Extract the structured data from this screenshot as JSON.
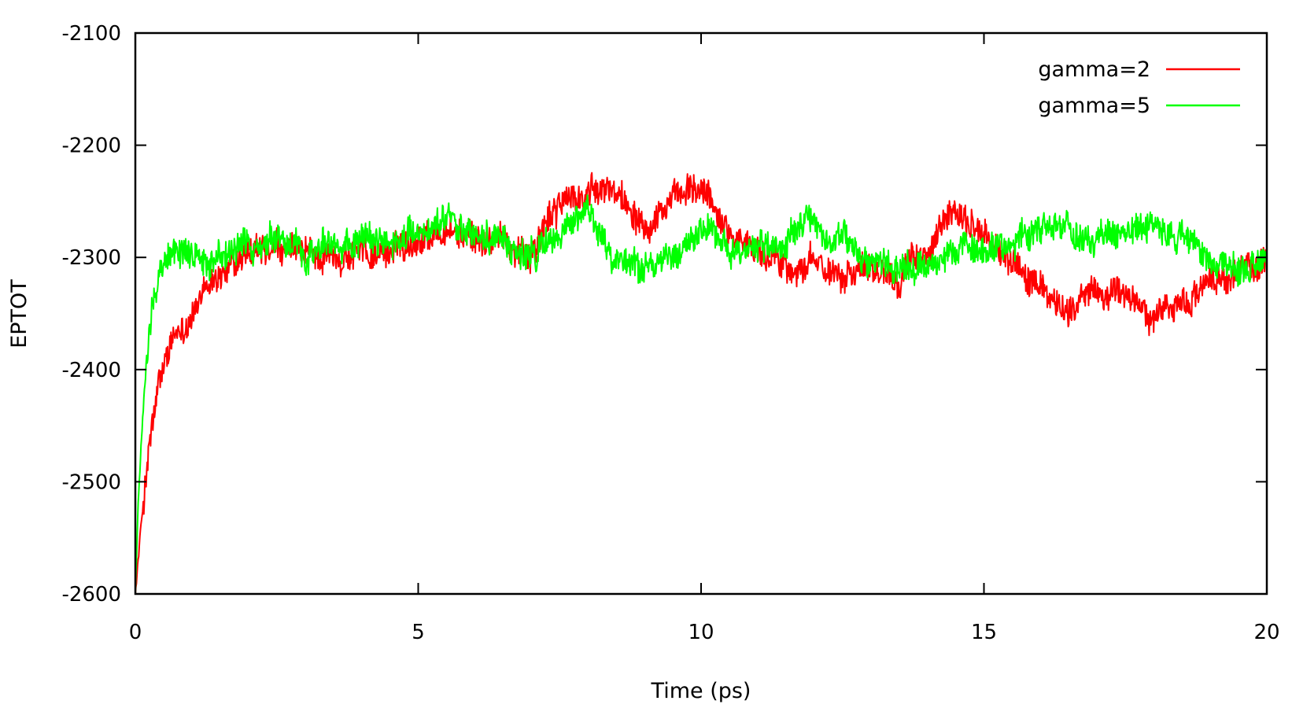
{
  "chart_data": {
    "type": "line",
    "title": "",
    "xlabel": "Time (ps)",
    "ylabel": "EPTOT",
    "xlim": [
      0,
      20
    ],
    "ylim": [
      -2600,
      -2100
    ],
    "xticks": [
      0,
      5,
      10,
      15,
      20
    ],
    "yticks": [
      -2600,
      -2500,
      -2400,
      -2300,
      -2200,
      -2100
    ],
    "xtick_labels": [
      "0",
      "5",
      "10",
      "15",
      "20"
    ],
    "ytick_labels": [
      "-2600",
      "-2500",
      "-2400",
      "-2300",
      "-2200",
      "-2100"
    ],
    "grid": false,
    "legend_position": "top-right",
    "series": [
      {
        "name": "gamma=2",
        "color": "#ff0000",
        "noise": 11,
        "x": [
          0,
          0.1,
          0.2,
          0.3,
          0.4,
          0.5,
          0.6,
          0.8,
          1.0,
          1.2,
          1.5,
          2.0,
          2.5,
          3.0,
          3.5,
          4.0,
          4.5,
          5.0,
          5.5,
          6.0,
          6.5,
          7.0,
          7.5,
          8.0,
          8.5,
          9.0,
          9.5,
          10.0,
          10.5,
          11.0,
          11.5,
          12.0,
          12.5,
          13.0,
          13.5,
          14.0,
          14.5,
          15.0,
          15.5,
          16.0,
          16.5,
          17.0,
          17.5,
          18.0,
          18.5,
          19.0,
          19.5,
          20.0
        ],
        "y": [
          -2600,
          -2540,
          -2490,
          -2450,
          -2420,
          -2400,
          -2385,
          -2365,
          -2350,
          -2335,
          -2315,
          -2300,
          -2295,
          -2298,
          -2300,
          -2295,
          -2295,
          -2280,
          -2275,
          -2285,
          -2285,
          -2295,
          -2250,
          -2245,
          -2240,
          -2265,
          -2250,
          -2240,
          -2275,
          -2295,
          -2305,
          -2310,
          -2310,
          -2305,
          -2315,
          -2295,
          -2260,
          -2280,
          -2305,
          -2330,
          -2345,
          -2330,
          -2335,
          -2350,
          -2340,
          -2325,
          -2310,
          -2305
        ]
      },
      {
        "name": "gamma=5",
        "color": "#00ff00",
        "noise": 11,
        "x": [
          0,
          0.05,
          0.1,
          0.15,
          0.2,
          0.25,
          0.3,
          0.4,
          0.5,
          0.7,
          1.0,
          1.5,
          2.0,
          2.5,
          3.0,
          3.5,
          4.0,
          4.5,
          5.0,
          5.5,
          6.0,
          6.5,
          7.0,
          7.5,
          8.0,
          8.5,
          9.0,
          9.5,
          10.0,
          10.5,
          11.0,
          11.5,
          12.0,
          12.5,
          13.0,
          13.5,
          14.0,
          14.5,
          15.0,
          15.5,
          16.0,
          16.5,
          17.0,
          17.5,
          18.0,
          18.5,
          19.0,
          19.5,
          20.0
        ],
        "y": [
          -2600,
          -2520,
          -2470,
          -2430,
          -2390,
          -2360,
          -2335,
          -2315,
          -2300,
          -2295,
          -2298,
          -2300,
          -2295,
          -2290,
          -2295,
          -2290,
          -2285,
          -2285,
          -2275,
          -2270,
          -2280,
          -2285,
          -2300,
          -2280,
          -2260,
          -2300,
          -2305,
          -2300,
          -2265,
          -2295,
          -2290,
          -2285,
          -2270,
          -2285,
          -2300,
          -2310,
          -2315,
          -2290,
          -2295,
          -2285,
          -2280,
          -2280,
          -2285,
          -2280,
          -2275,
          -2280,
          -2300,
          -2310,
          -2305
        ]
      }
    ]
  }
}
